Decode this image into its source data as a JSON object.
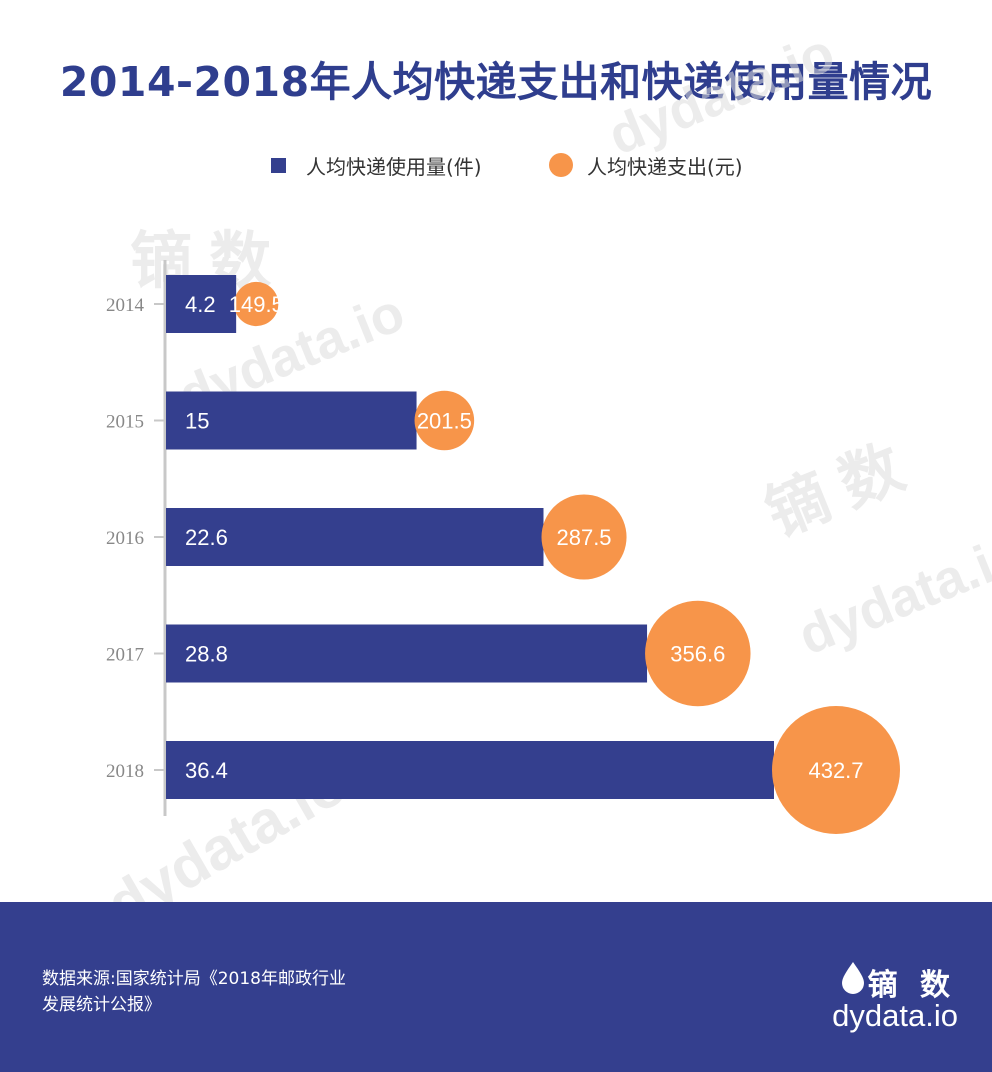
{
  "title": "2014-2018年人均快递支出和快递使用量情况",
  "colors": {
    "bar": "#343f8e",
    "bubble": "#f7954a",
    "axis": "#c8c8c8",
    "tick_text": "#888888",
    "footer_bg": "#343f8e"
  },
  "watermark": {
    "cn": "镝 数",
    "en": "dydata.io"
  },
  "chart_data": {
    "type": "bar",
    "orientation": "horizontal",
    "categories": [
      "2014",
      "2015",
      "2016",
      "2017",
      "2018"
    ],
    "series": [
      {
        "name": "人均快递使用量(件)",
        "values": [
          4.2,
          15,
          22.6,
          28.8,
          36.4
        ],
        "marker": "bar"
      },
      {
        "name": "人均快递支出(元)",
        "values": [
          149.5,
          201.5,
          287.5,
          356.6,
          432.7
        ],
        "marker": "bubble"
      }
    ],
    "legend": "top-center"
  },
  "footer": {
    "source": "数据来源:国家统计局《2018年邮政行业发展统计公报》",
    "logo_cn": "镝 数",
    "logo_en": "dydata.io"
  }
}
